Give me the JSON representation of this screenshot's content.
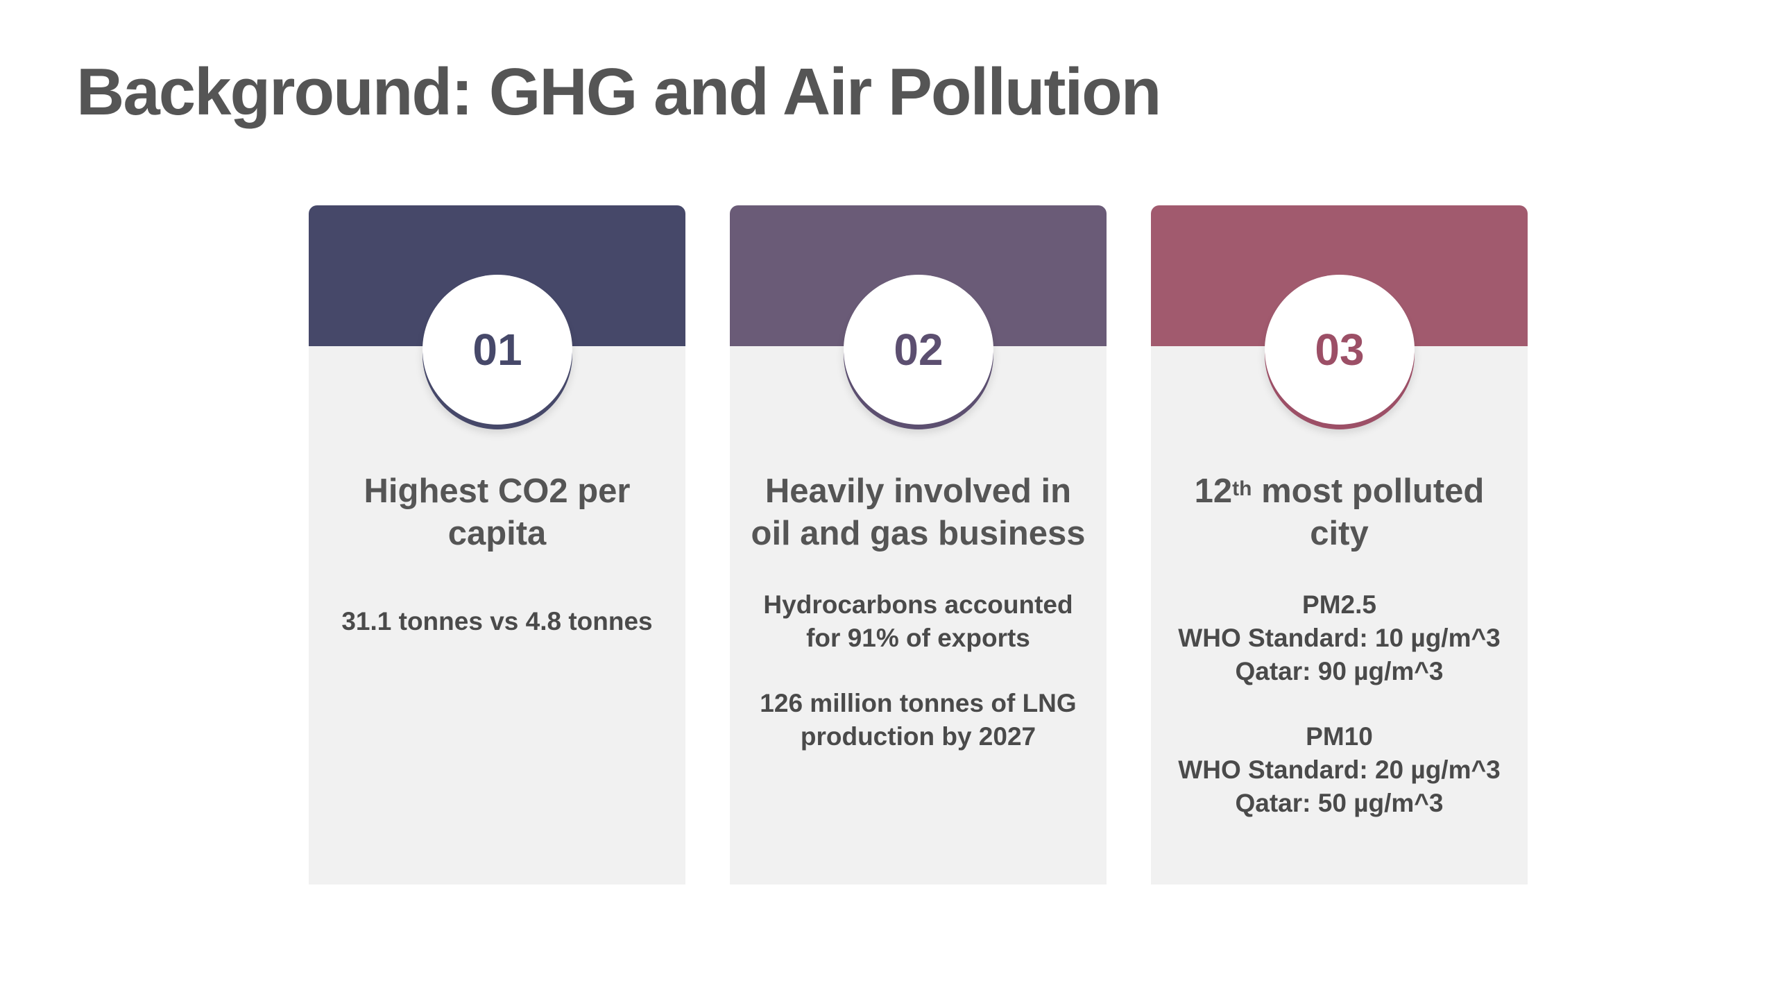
{
  "slide": {
    "title": "Background: GHG and Air Pollution"
  },
  "colors": {
    "card1_accent": "#464869",
    "card2_accent": "#6a5b77",
    "card3_accent": "#a15a6e",
    "card_background": "#f1f1f1",
    "text": "#555555"
  },
  "cards": [
    {
      "number": "01",
      "heading": "Highest CO2 per capita",
      "body": [
        "31.1 tonnes vs 4.8 tonnes"
      ]
    },
    {
      "number": "02",
      "heading": "Heavily involved in oil and gas business",
      "body": [
        "Hydrocarbons accounted for 91% of exports",
        "126 million tonnes of LNG production by 2027"
      ]
    },
    {
      "number": "03",
      "heading_prefix": "12",
      "heading_superscript": "th",
      "heading_suffix": " most polluted city",
      "body": [
        [
          "PM2.5",
          "WHO Standard: 10 µg/m^3",
          "Qatar: 90 µg/m^3"
        ],
        [
          "PM10",
          "WHO Standard: 20 µg/m^3",
          "Qatar: 50 µg/m^3"
        ]
      ]
    }
  ]
}
